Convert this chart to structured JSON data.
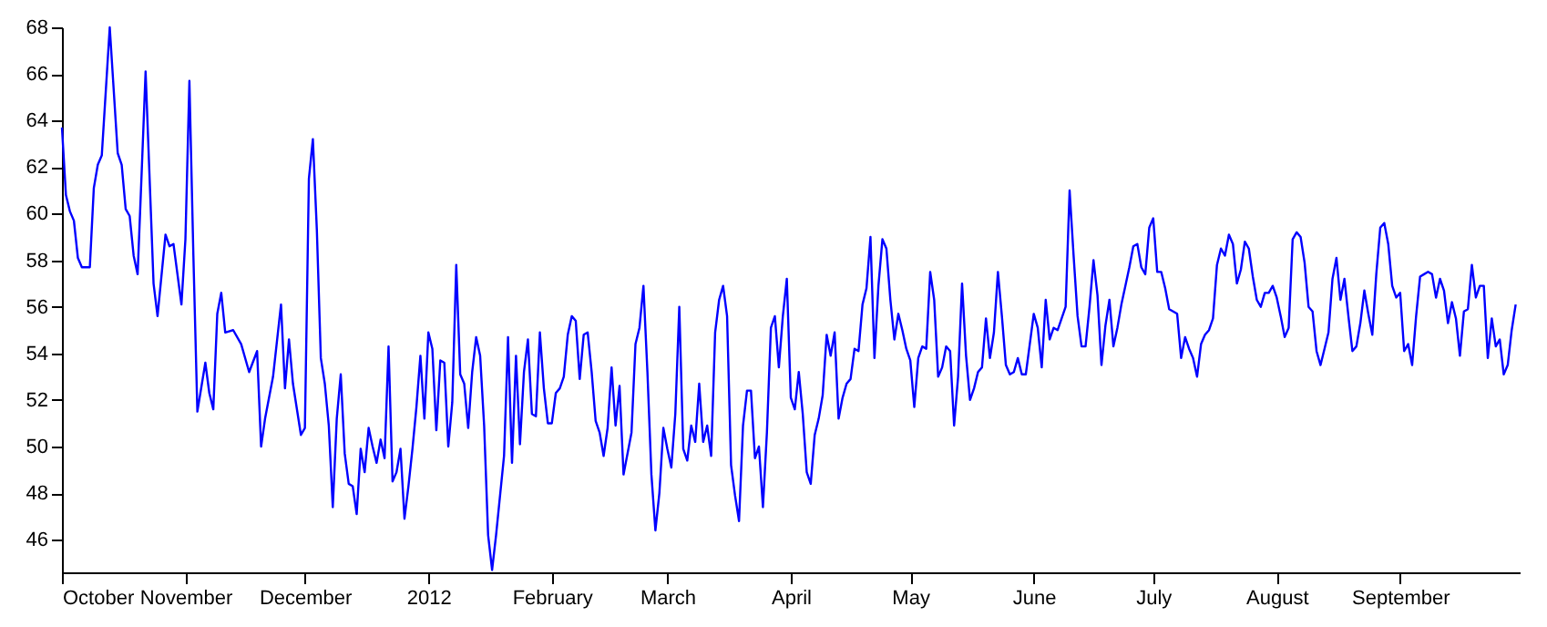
{
  "chart_data": {
    "type": "line",
    "color": "#0000ff",
    "xlim": [
      "2011-10-01",
      "2012-10-01"
    ],
    "ylim": [
      44.6,
      68
    ],
    "xticks": [
      {
        "value": "2011-10-01",
        "label": "October"
      },
      {
        "value": "2011-11-01",
        "label": "November"
      },
      {
        "value": "2011-12-01",
        "label": "December"
      },
      {
        "value": "2012-01-01",
        "label": "2012"
      },
      {
        "value": "2012-02-01",
        "label": "February"
      },
      {
        "value": "2012-03-01",
        "label": "March"
      },
      {
        "value": "2012-04-01",
        "label": "April"
      },
      {
        "value": "2012-05-01",
        "label": "May"
      },
      {
        "value": "2012-06-01",
        "label": "June"
      },
      {
        "value": "2012-07-01",
        "label": "July"
      },
      {
        "value": "2012-08-01",
        "label": "August"
      },
      {
        "value": "2012-09-01",
        "label": "September"
      }
    ],
    "yticks": [
      46,
      48,
      50,
      52,
      54,
      56,
      58,
      60,
      62,
      64,
      66,
      68
    ],
    "x": [
      "2011-10-01",
      "2011-10-02",
      "2011-10-03",
      "2011-10-04",
      "2011-10-05",
      "2011-10-06",
      "2011-10-08",
      "2011-10-09",
      "2011-10-10",
      "2011-10-11",
      "2011-10-13",
      "2011-10-15",
      "2011-10-16",
      "2011-10-17",
      "2011-10-18",
      "2011-10-19",
      "2011-10-20",
      "2011-10-21",
      "2011-10-22",
      "2011-10-24",
      "2011-10-25",
      "2011-10-27",
      "2011-10-28",
      "2011-10-29",
      "2011-10-31",
      "2011-11-01",
      "2011-11-02",
      "2011-11-03",
      "2011-11-04",
      "2011-11-06",
      "2011-11-07",
      "2011-11-08",
      "2011-11-09",
      "2011-11-10",
      "2011-11-11",
      "2011-11-13",
      "2011-11-15",
      "2011-11-17",
      "2011-11-19",
      "2011-11-20",
      "2011-11-21",
      "2011-11-23",
      "2011-11-25",
      "2011-11-26",
      "2011-11-27",
      "2011-11-28",
      "2011-11-30",
      "2011-12-01",
      "2011-12-02",
      "2011-12-03",
      "2011-12-04",
      "2011-12-05",
      "2011-12-06",
      "2011-12-07",
      "2011-12-08",
      "2011-12-09",
      "2011-12-10",
      "2011-12-11",
      "2011-12-12",
      "2011-12-13",
      "2011-12-14",
      "2011-12-15",
      "2011-12-16",
      "2011-12-17",
      "2011-12-18",
      "2011-12-19",
      "2011-12-20",
      "2011-12-21",
      "2011-12-22",
      "2011-12-23",
      "2011-12-24",
      "2011-12-25",
      "2011-12-26",
      "2011-12-27",
      "2011-12-28",
      "2011-12-29",
      "2011-12-30",
      "2011-12-31",
      "2012-01-01",
      "2012-01-02",
      "2012-01-03",
      "2012-01-04",
      "2012-01-05",
      "2012-01-06",
      "2012-01-07",
      "2012-01-08",
      "2012-01-09",
      "2012-01-10",
      "2012-01-11",
      "2012-01-12",
      "2012-01-13",
      "2012-01-14",
      "2012-01-15",
      "2012-01-16",
      "2012-01-17",
      "2012-01-18",
      "2012-01-20",
      "2012-01-21",
      "2012-01-22",
      "2012-01-23",
      "2012-01-24",
      "2012-01-25",
      "2012-01-26",
      "2012-01-27",
      "2012-01-28",
      "2012-01-29",
      "2012-01-30",
      "2012-01-31",
      "2012-02-01",
      "2012-02-02",
      "2012-02-03",
      "2012-02-04",
      "2012-02-05",
      "2012-02-06",
      "2012-02-07",
      "2012-02-08",
      "2012-02-09",
      "2012-02-10",
      "2012-02-11",
      "2012-02-12",
      "2012-02-13",
      "2012-02-14",
      "2012-02-15",
      "2012-02-16",
      "2012-02-17",
      "2012-02-18",
      "2012-02-19",
      "2012-02-20",
      "2012-02-21",
      "2012-02-22",
      "2012-02-23",
      "2012-02-24",
      "2012-02-25",
      "2012-02-26",
      "2012-02-27",
      "2012-02-28",
      "2012-02-29",
      "2012-03-01",
      "2012-03-02",
      "2012-03-03",
      "2012-03-04",
      "2012-03-05",
      "2012-03-06",
      "2012-03-07",
      "2012-03-08",
      "2012-03-09",
      "2012-03-10",
      "2012-03-11",
      "2012-03-12",
      "2012-03-13",
      "2012-03-14",
      "2012-03-15",
      "2012-03-16",
      "2012-03-17",
      "2012-03-18",
      "2012-03-19",
      "2012-03-20",
      "2012-03-21",
      "2012-03-22",
      "2012-03-23",
      "2012-03-24",
      "2012-03-25",
      "2012-03-26",
      "2012-03-27",
      "2012-03-28",
      "2012-03-29",
      "2012-03-30",
      "2012-03-31",
      "2012-04-01",
      "2012-04-02",
      "2012-04-03",
      "2012-04-04",
      "2012-04-05",
      "2012-04-06",
      "2012-04-07",
      "2012-04-08",
      "2012-04-09",
      "2012-04-10",
      "2012-04-11",
      "2012-04-12",
      "2012-04-13",
      "2012-04-14",
      "2012-04-15",
      "2012-04-16",
      "2012-04-17",
      "2012-04-18",
      "2012-04-19",
      "2012-04-20",
      "2012-04-21",
      "2012-04-22",
      "2012-04-23",
      "2012-04-24",
      "2012-04-25",
      "2012-04-26",
      "2012-04-27",
      "2012-04-28",
      "2012-04-29",
      "2012-04-30",
      "2012-05-01",
      "2012-05-02",
      "2012-05-03",
      "2012-05-04",
      "2012-05-05",
      "2012-05-06",
      "2012-05-07",
      "2012-05-08",
      "2012-05-09",
      "2012-05-10",
      "2012-05-11",
      "2012-05-12",
      "2012-05-13",
      "2012-05-14",
      "2012-05-15",
      "2012-05-16",
      "2012-05-17",
      "2012-05-18",
      "2012-05-19",
      "2012-05-20",
      "2012-05-21",
      "2012-05-22",
      "2012-05-23",
      "2012-05-24",
      "2012-05-25",
      "2012-05-26",
      "2012-05-27",
      "2012-05-28",
      "2012-05-29",
      "2012-05-30",
      "2012-05-31",
      "2012-06-01",
      "2012-06-02",
      "2012-06-03",
      "2012-06-04",
      "2012-06-05",
      "2012-06-06",
      "2012-06-07",
      "2012-06-08",
      "2012-06-09",
      "2012-06-10",
      "2012-06-11",
      "2012-06-12",
      "2012-06-13",
      "2012-06-14",
      "2012-06-15",
      "2012-06-16",
      "2012-06-17",
      "2012-06-18",
      "2012-06-19",
      "2012-06-20",
      "2012-06-21",
      "2012-06-22",
      "2012-06-23",
      "2012-06-24",
      "2012-06-25",
      "2012-06-26",
      "2012-06-27",
      "2012-06-28",
      "2012-06-29",
      "2012-06-30",
      "2012-07-01",
      "2012-07-02",
      "2012-07-03",
      "2012-07-04",
      "2012-07-05",
      "2012-07-06",
      "2012-07-07",
      "2012-07-08",
      "2012-07-09",
      "2012-07-10",
      "2012-07-11",
      "2012-07-12",
      "2012-07-13",
      "2012-07-14",
      "2012-07-15",
      "2012-07-16",
      "2012-07-17",
      "2012-07-18",
      "2012-07-19",
      "2012-07-20",
      "2012-07-21",
      "2012-07-22",
      "2012-07-23",
      "2012-07-24",
      "2012-07-25",
      "2012-07-26",
      "2012-07-27",
      "2012-07-28",
      "2012-07-29",
      "2012-07-30",
      "2012-07-31",
      "2012-08-01",
      "2012-08-02",
      "2012-08-03",
      "2012-08-04",
      "2012-08-05",
      "2012-08-06",
      "2012-08-07",
      "2012-08-08",
      "2012-08-09",
      "2012-08-10",
      "2012-08-11",
      "2012-08-12",
      "2012-08-13",
      "2012-08-14",
      "2012-08-15",
      "2012-08-16",
      "2012-08-17",
      "2012-08-18",
      "2012-08-19",
      "2012-08-20",
      "2012-08-21",
      "2012-08-22",
      "2012-08-23",
      "2012-08-24",
      "2012-08-25",
      "2012-08-26",
      "2012-08-27",
      "2012-08-28",
      "2012-08-29",
      "2012-08-30",
      "2012-08-31",
      "2012-09-01",
      "2012-09-02",
      "2012-09-03",
      "2012-09-04",
      "2012-09-05",
      "2012-09-06",
      "2012-09-07",
      "2012-09-08",
      "2012-09-09",
      "2012-09-10",
      "2012-09-11",
      "2012-09-12",
      "2012-09-13",
      "2012-09-14",
      "2012-09-15",
      "2012-09-16",
      "2012-09-17",
      "2012-09-18",
      "2012-09-19",
      "2012-09-20",
      "2012-09-21",
      "2012-09-22",
      "2012-09-23",
      "2012-09-24",
      "2012-09-25",
      "2012-09-26",
      "2012-09-27",
      "2012-09-28",
      "2012-09-29",
      "2012-09-30"
    ],
    "values": [
      63.7,
      60.8,
      60.1,
      59.7,
      58.1,
      57.7,
      57.7,
      61.1,
      62.1,
      62.5,
      68.0,
      62.6,
      62.1,
      60.2,
      59.9,
      58.2,
      57.4,
      61.7,
      66.1,
      57.0,
      55.6,
      59.1,
      58.6,
      58.7,
      56.1,
      58.9,
      65.7,
      58.2,
      51.5,
      53.6,
      52.3,
      51.6,
      55.7,
      56.6,
      54.9,
      55.0,
      54.4,
      53.2,
      54.1,
      50.0,
      51.2,
      53.0,
      56.1,
      52.5,
      54.6,
      52.7,
      50.5,
      50.8,
      61.5,
      63.2,
      59.3,
      53.8,
      52.7,
      50.9,
      47.4,
      51.2,
      53.1,
      49.7,
      48.4,
      48.3,
      47.1,
      49.9,
      48.9,
      50.8,
      50.0,
      49.3,
      50.3,
      49.5,
      54.3,
      48.5,
      48.9,
      49.9,
      46.9,
      48.3,
      49.9,
      51.7,
      53.9,
      51.2,
      54.9,
      54.2,
      50.7,
      53.7,
      53.6,
      50.0,
      51.9,
      57.8,
      53.1,
      52.7,
      50.8,
      53.2,
      54.7,
      53.9,
      50.9,
      46.2,
      44.7,
      46.2,
      49.6,
      54.7,
      49.3,
      53.9,
      50.1,
      53.2,
      54.6,
      51.4,
      51.3,
      54.9,
      52.5,
      51.0,
      51.0,
      52.3,
      52.5,
      53.0,
      54.8,
      55.6,
      55.4,
      52.9,
      54.8,
      54.9,
      53.2,
      51.1,
      50.6,
      49.6,
      50.8,
      53.4,
      50.9,
      52.6,
      48.8,
      49.7,
      50.6,
      54.4,
      55.1,
      56.9,
      53.2,
      48.8,
      46.4,
      48.0,
      50.8,
      49.9,
      49.1,
      51.4,
      56.0,
      49.9,
      49.4,
      50.9,
      50.2,
      52.7,
      50.2,
      50.9,
      49.6,
      54.9,
      56.3,
      56.9,
      55.6,
      49.2,
      47.9,
      46.8,
      50.9,
      52.4,
      52.4,
      49.5,
      50.0,
      47.4,
      50.6,
      55.1,
      55.6,
      53.4,
      55.6,
      57.2,
      52.1,
      51.6,
      53.2,
      51.4,
      48.9,
      48.4,
      50.5,
      51.2,
      52.2,
      54.8,
      53.9,
      54.9,
      51.2,
      52.1,
      52.7,
      52.9,
      54.2,
      54.1,
      56.1,
      56.8,
      59.0,
      53.8,
      56.9,
      58.9,
      58.5,
      56.3,
      54.6,
      55.7,
      55.0,
      54.2,
      53.7,
      51.7,
      53.8,
      54.3,
      54.2,
      57.5,
      56.3,
      53.0,
      53.4,
      54.3,
      54.1,
      50.9,
      53.0,
      57.0,
      53.9,
      52.0,
      52.5,
      53.2,
      53.4,
      55.5,
      53.8,
      54.9,
      57.5,
      55.6,
      53.5,
      53.1,
      53.2,
      53.8,
      53.1,
      53.1,
      54.4,
      55.7,
      55.1,
      53.4,
      56.3,
      54.6,
      55.1,
      55.0,
      55.5,
      56.0,
      61.0,
      58.2,
      55.6,
      54.3,
      54.3,
      56.0,
      58.0,
      56.5,
      53.5,
      55.2,
      56.3,
      54.3,
      55.1,
      56.1,
      56.9,
      57.7,
      58.6,
      58.7,
      57.7,
      57.4,
      59.4,
      59.8,
      57.5,
      57.5,
      56.8,
      55.9,
      55.8,
      55.7,
      53.8,
      54.7,
      54.2,
      53.8,
      53.0,
      54.4,
      54.8,
      55.0,
      55.5,
      57.8,
      58.5,
      58.2,
      59.1,
      58.7,
      57.0,
      57.6,
      58.8,
      58.5,
      57.3,
      56.3,
      56.0,
      56.6,
      56.6,
      56.9,
      56.4,
      55.6,
      54.7,
      55.1,
      58.9,
      59.2,
      59.0,
      57.9,
      56.0,
      55.8,
      54.1,
      53.5,
      54.2,
      54.9,
      57.2,
      58.1,
      56.3,
      57.2,
      55.6,
      54.1,
      54.3,
      55.3,
      56.7,
      55.7,
      54.8,
      57.4,
      59.4,
      59.6,
      58.7,
      56.9,
      56.4,
      56.6,
      54.1,
      54.4,
      53.5,
      55.6,
      57.3,
      57.4,
      57.5,
      57.4,
      56.4,
      57.2,
      56.7,
      55.3,
      56.2,
      55.5,
      53.9,
      55.8,
      55.9,
      57.8,
      56.4,
      56.9,
      56.9,
      53.8,
      55.5,
      54.3,
      54.6,
      53.1,
      53.5,
      55.0,
      56.1
    ]
  }
}
